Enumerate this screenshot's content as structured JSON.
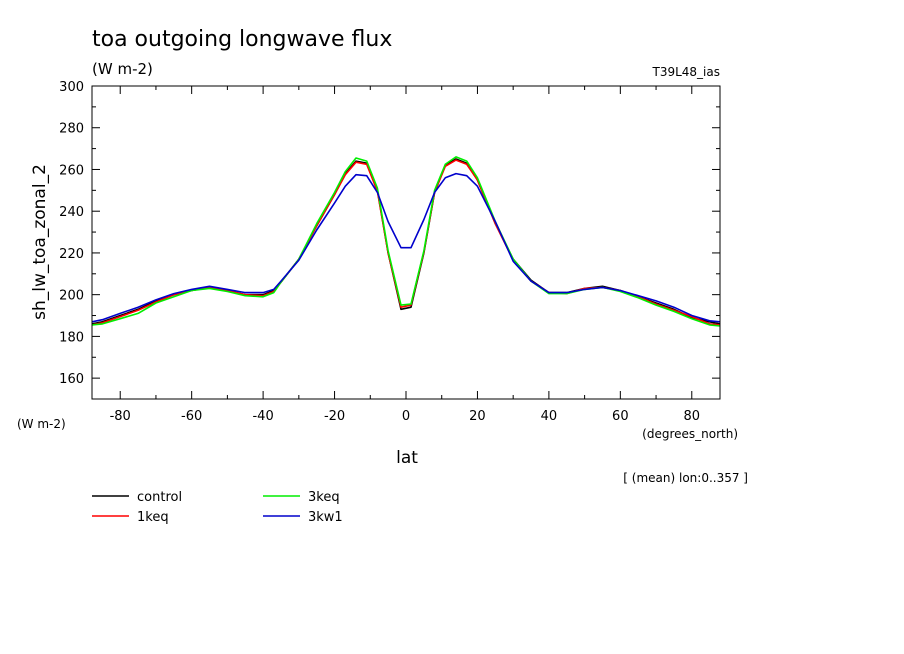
{
  "chart_data": {
    "type": "line",
    "title": "toa outgoing longwave flux",
    "subtitle": "(W m-2)",
    "experiment": "T39L48_ias",
    "ylabel": "sh_lw_toa_zonal_2",
    "yunits": "(W m-2)",
    "xlabel": "lat",
    "xunits": "(degrees_north)",
    "note": "[ (mean) lon:0..357 ]",
    "xlim": [
      -87.9,
      87.9
    ],
    "ylim": [
      150,
      300
    ],
    "xticks": [
      -80,
      -60,
      -40,
      -20,
      0,
      20,
      40,
      60,
      80
    ],
    "xtick_labels": [
      "-80",
      "-60",
      "-40",
      "-20",
      "0",
      "20",
      "40",
      "60",
      "80"
    ],
    "yticks": [
      160,
      180,
      200,
      220,
      240,
      260,
      280,
      300
    ],
    "ytick_labels": [
      "160",
      "180",
      "200",
      "220",
      "240",
      "260",
      "280",
      "300"
    ],
    "grid": false,
    "legend_position": "bottom-left",
    "x": [
      -87.9,
      -85,
      -80,
      -75,
      -70,
      -65,
      -60,
      -55,
      -50,
      -45,
      -40,
      -37,
      -35,
      -30,
      -25,
      -20,
      -17,
      -14,
      -11,
      -8,
      -5,
      -1.4,
      1.4,
      5,
      8,
      11,
      14,
      17,
      20,
      25,
      30,
      35,
      40,
      45,
      50,
      55,
      60,
      65,
      70,
      75,
      80,
      85,
      87.9
    ],
    "series": [
      {
        "name": "control",
        "color": "#000000",
        "values": [
          186,
          187,
          190,
          193,
          197,
          200,
          202,
          203.5,
          202,
          200,
          200,
          202,
          206,
          217,
          233,
          248,
          258,
          264,
          263,
          250,
          220,
          193,
          194,
          220,
          249,
          262,
          265,
          263,
          255,
          234,
          217,
          207,
          201,
          201,
          203,
          204,
          202,
          199,
          196,
          193,
          189,
          187,
          186
        ]
      },
      {
        "name": "1keq",
        "color": "#ff0000",
        "values": [
          185.5,
          186.5,
          189.5,
          192.5,
          196.5,
          200,
          202,
          203.5,
          202,
          200,
          199.5,
          201.5,
          206,
          217,
          233,
          248,
          257.5,
          263.5,
          262.5,
          249.5,
          220,
          194,
          195,
          220.5,
          249,
          261.5,
          264.5,
          262.5,
          255,
          234,
          216.5,
          206.5,
          201,
          200.5,
          203,
          203.5,
          202,
          199,
          195.5,
          192.5,
          189.5,
          186,
          185.5
        ]
      },
      {
        "name": "3keq",
        "color": "#00ee00",
        "values": [
          185.5,
          186,
          188.5,
          191,
          196,
          199,
          202,
          203,
          201.5,
          199.5,
          199,
          201,
          206,
          217,
          234,
          249,
          259,
          265.5,
          264,
          251,
          221,
          195,
          195.5,
          221,
          250,
          262.5,
          266,
          264,
          256,
          235,
          217,
          206.5,
          200.5,
          200.5,
          202.5,
          203.5,
          201.5,
          198.5,
          195,
          192,
          188.5,
          185.5,
          185
        ]
      },
      {
        "name": "3kw1",
        "color": "#0000cc",
        "values": [
          187,
          188,
          191,
          194,
          197.5,
          200.5,
          202.5,
          204,
          202.5,
          201,
          201,
          202.5,
          206.5,
          216.5,
          231,
          244,
          252,
          257.5,
          257,
          249,
          235,
          222.5,
          222.5,
          236,
          249,
          256,
          258,
          257,
          252,
          235,
          216,
          206.5,
          201,
          201,
          202.5,
          203.5,
          202,
          199.5,
          197,
          194,
          190,
          187.5,
          187
        ]
      }
    ]
  }
}
